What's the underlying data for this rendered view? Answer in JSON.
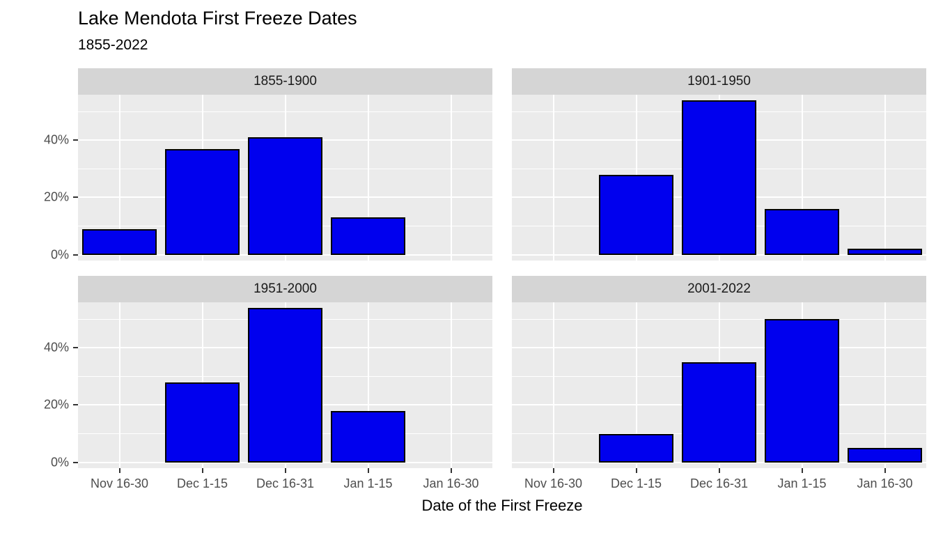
{
  "title": "Lake Mendota First Freeze Dates",
  "subtitle": "1855-2022",
  "xlabel": "Date of the First Freeze",
  "chart_data": {
    "type": "bar",
    "categories": [
      "Nov 16-30",
      "Dec 1-15",
      "Dec 16-31",
      "Jan 1-15",
      "Jan 16-30"
    ],
    "facets": [
      {
        "label": "1855-1900",
        "values": [
          9,
          37,
          41,
          13,
          0
        ]
      },
      {
        "label": "1901-1950",
        "values": [
          0,
          28,
          54,
          16,
          2
        ]
      },
      {
        "label": "1951-2000",
        "values": [
          0,
          28,
          54,
          18,
          0
        ]
      },
      {
        "label": "2001-2022",
        "values": [
          0,
          10,
          35,
          50,
          5
        ]
      }
    ],
    "title": "Lake Mendota First Freeze Dates",
    "subtitle": "1855-2022",
    "xlabel": "Date of the First Freeze",
    "ylabel": "",
    "yticks": [
      0,
      20,
      40
    ],
    "ytick_labels": [
      "0%",
      "20%",
      "40%"
    ],
    "ylim": [
      0,
      56
    ],
    "grid": true,
    "legend": "none",
    "bar_color": "#0000ee",
    "bar_border": "#000000",
    "panel_bg": "#ebebeb",
    "strip_bg": "#d5d5d5",
    "grid_color": "#ffffff",
    "axis_text_color": "#4d4d4d"
  }
}
